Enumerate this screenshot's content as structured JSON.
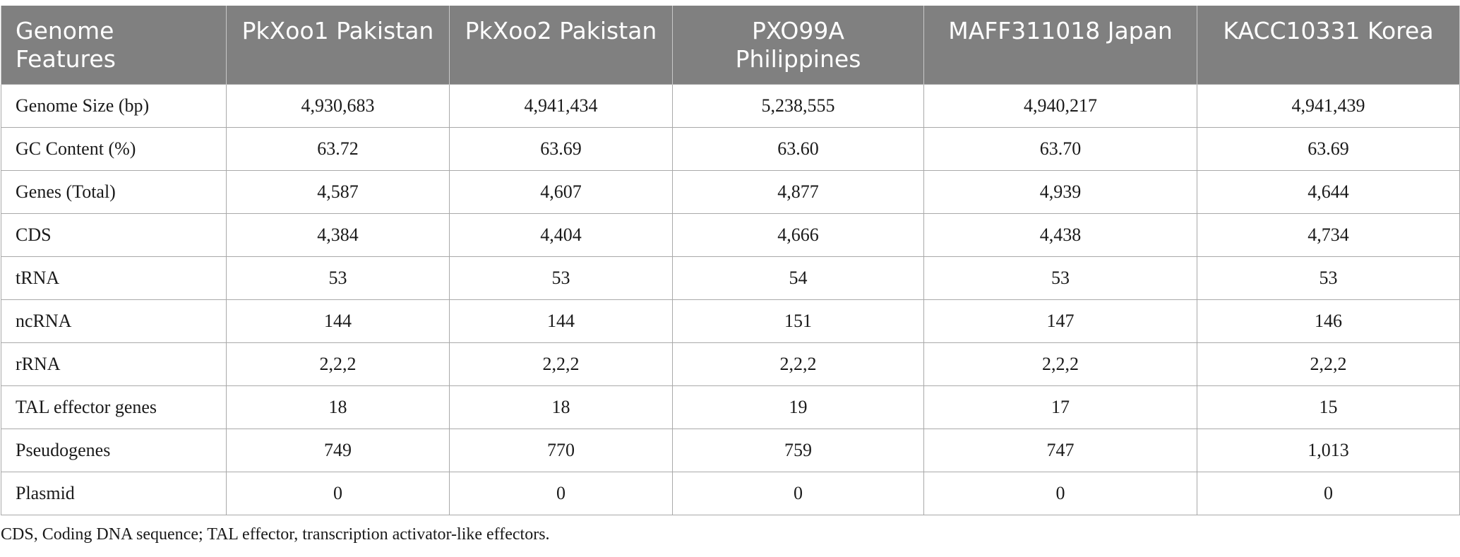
{
  "table": {
    "headers": [
      "Genome Features",
      "PkXoo1 Pakistan",
      "PkXoo2 Pakistan",
      "PXO99A Philippines",
      "MAFF311018 Japan",
      "KACC10331 Korea"
    ],
    "rows": [
      [
        "Genome Size (bp)",
        "4,930,683",
        "4,941,434",
        "5,238,555",
        "4,940,217",
        "4,941,439"
      ],
      [
        "GC Content (%)",
        "63.72",
        "63.69",
        "63.60",
        "63.70",
        "63.69"
      ],
      [
        "Genes (Total)",
        "4,587",
        "4,607",
        "4,877",
        "4,939",
        "4,644"
      ],
      [
        "CDS",
        "4,384",
        "4,404",
        "4,666",
        "4,438",
        "4,734"
      ],
      [
        "tRNA",
        "53",
        "53",
        "54",
        "53",
        "53"
      ],
      [
        "ncRNA",
        "144",
        "144",
        "151",
        "147",
        "146"
      ],
      [
        "rRNA",
        "2,2,2",
        "2,2,2",
        "2,2,2",
        "2,2,2",
        "2,2,2"
      ],
      [
        "TAL effector genes",
        "18",
        "18",
        "19",
        "17",
        "15"
      ],
      [
        "Pseudogenes",
        "749",
        "770",
        "759",
        "747",
        "1,013"
      ],
      [
        "Plasmid",
        "0",
        "0",
        "0",
        "0",
        "0"
      ]
    ]
  },
  "footnote": "CDS, Coding DNA sequence; TAL effector, transcription activator-like effectors."
}
